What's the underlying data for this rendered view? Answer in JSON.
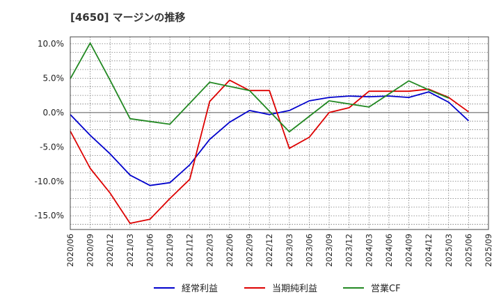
{
  "chart_data": {
    "type": "line",
    "title": "[4650]  マージンの推移",
    "xlabel": "",
    "ylabel": "",
    "ylim": [
      -17,
      11
    ],
    "yticks": [
      {
        "value": 10,
        "label": "10.0%"
      },
      {
        "value": 5,
        "label": "5.0%"
      },
      {
        "value": 0,
        "label": "0.0%"
      },
      {
        "value": -5,
        "label": "-5.0%"
      },
      {
        "value": -10,
        "label": "-10.0%"
      },
      {
        "value": -15,
        "label": "-15.0%"
      }
    ],
    "categories": [
      "2020/06",
      "2020/09",
      "2020/12",
      "2021/03",
      "2021/06",
      "2021/09",
      "2021/12",
      "2022/03",
      "2022/06",
      "2022/09",
      "2022/12",
      "2023/03",
      "2023/06",
      "2023/09",
      "2023/12",
      "2024/03",
      "2024/06",
      "2024/09",
      "2024/12",
      "2025/03",
      "2025/06",
      "2025/09"
    ],
    "grid": true,
    "legend_position": "bottom",
    "series": [
      {
        "name": "経常利益",
        "color": "#0000cc",
        "values": [
          -0.3,
          -3.3,
          -6.0,
          -9.1,
          -10.6,
          -10.2,
          -7.6,
          -3.9,
          -1.4,
          0.3,
          -0.3,
          0.3,
          1.7,
          2.2,
          2.4,
          2.3,
          2.4,
          2.2,
          3.0,
          1.5,
          -1.2,
          null
        ]
      },
      {
        "name": "当期純利益",
        "color": "#dd0000",
        "values": [
          -2.7,
          -8.1,
          -11.7,
          -16.1,
          -15.5,
          -12.5,
          -9.7,
          1.6,
          4.7,
          3.2,
          3.2,
          -5.2,
          -3.6,
          0.0,
          0.7,
          3.1,
          3.1,
          3.1,
          3.4,
          2.2,
          0.1,
          null
        ]
      },
      {
        "name": "営業CF",
        "color": "#228822",
        "values": [
          4.9,
          10.1,
          4.7,
          -0.9,
          -1.3,
          -1.7,
          null,
          4.4,
          null,
          3.2,
          null,
          -2.8,
          null,
          1.7,
          null,
          0.8,
          null,
          4.6,
          3.3,
          2.1,
          null,
          null
        ]
      }
    ]
  }
}
